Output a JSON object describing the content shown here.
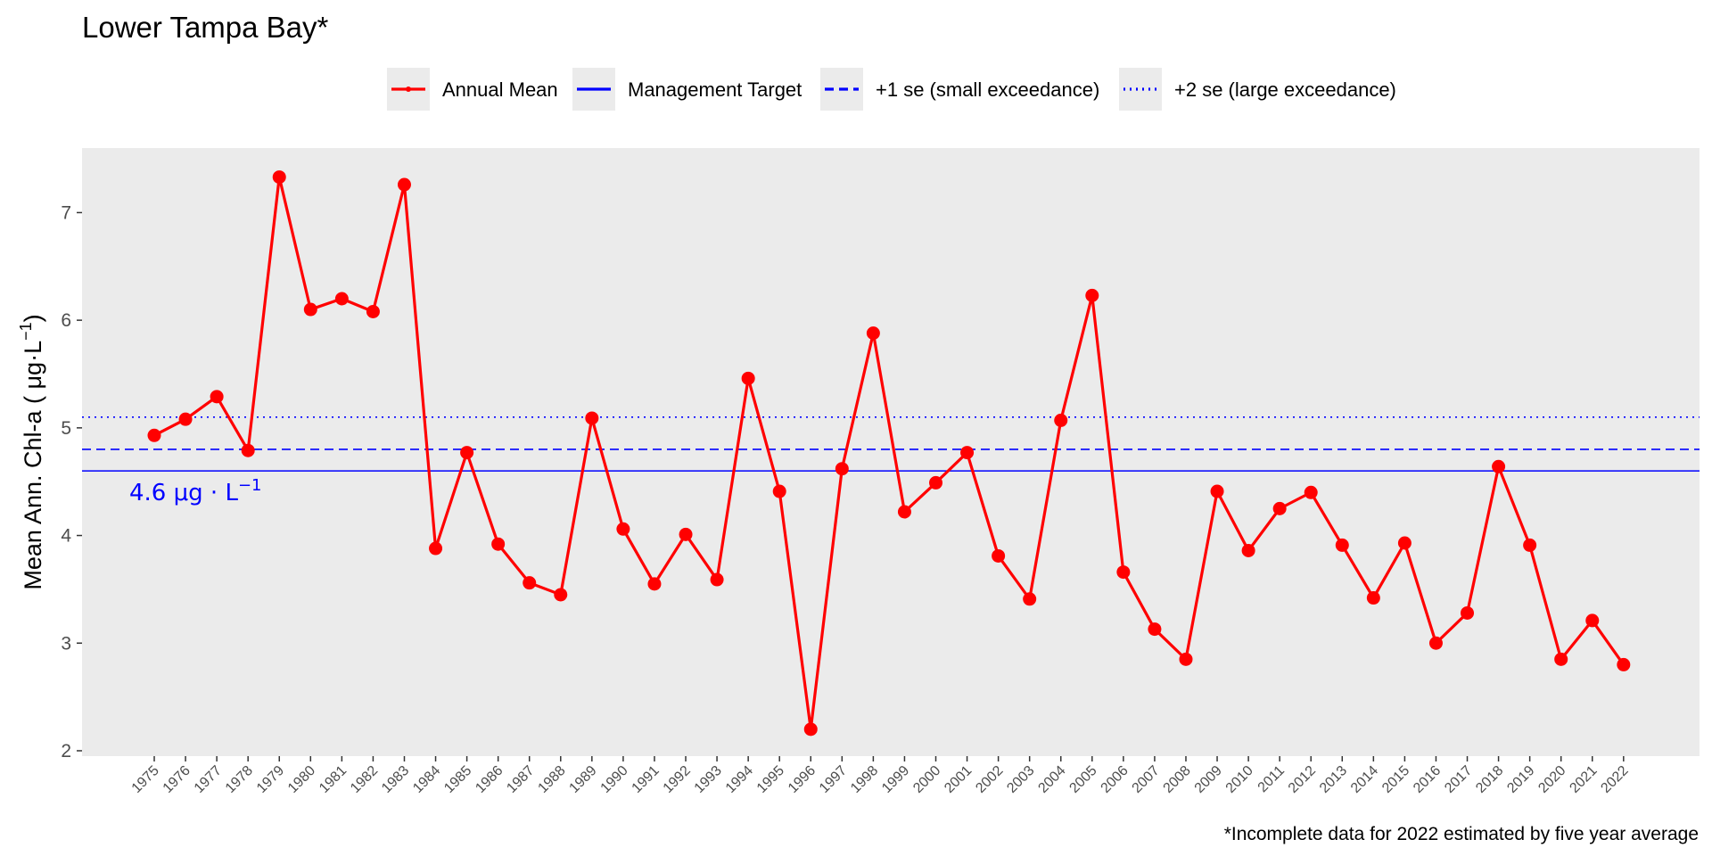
{
  "chart_data": {
    "type": "line",
    "title": "Lower Tampa Bay*",
    "ylabel": "Mean Ann. Chl-a ( μg·L",
    "ylabel_sup": "−1",
    "ylabel_close": ")",
    "caption": "*Incomplete data for 2022 estimated by five year average",
    "ylim": [
      1.95,
      7.6
    ],
    "yticks": [
      2,
      3,
      4,
      5,
      6,
      7
    ],
    "legend_position": "top",
    "grid": false,
    "x": [
      1975,
      1976,
      1977,
      1978,
      1979,
      1980,
      1981,
      1982,
      1983,
      1984,
      1985,
      1986,
      1987,
      1988,
      1989,
      1990,
      1991,
      1992,
      1993,
      1994,
      1995,
      1996,
      1997,
      1998,
      1999,
      2000,
      2001,
      2002,
      2003,
      2004,
      2005,
      2006,
      2007,
      2008,
      2009,
      2010,
      2011,
      2012,
      2013,
      2014,
      2015,
      2016,
      2017,
      2018,
      2019,
      2020,
      2021,
      2022
    ],
    "series": [
      {
        "name": "Annual Mean",
        "color": "#ff0000",
        "values": [
          4.93,
          5.08,
          5.29,
          4.79,
          7.33,
          6.1,
          6.2,
          6.08,
          7.26,
          3.88,
          4.77,
          3.92,
          3.56,
          3.45,
          5.09,
          4.06,
          3.55,
          4.01,
          3.59,
          5.46,
          4.41,
          2.2,
          4.62,
          5.88,
          4.22,
          4.49,
          4.77,
          3.81,
          3.41,
          5.07,
          6.23,
          3.66,
          3.13,
          2.85,
          4.41,
          3.86,
          4.25,
          4.4,
          3.91,
          3.42,
          3.93,
          3.0,
          3.28,
          4.64,
          3.91,
          2.85,
          3.21,
          2.8
        ]
      }
    ],
    "reference_lines": [
      {
        "name": "Management Target",
        "value": 4.6,
        "color": "#0000ff",
        "style": "solid"
      },
      {
        "name": "+1 se (small exceedance)",
        "value": 4.8,
        "color": "#0000ff",
        "style": "dashed"
      },
      {
        "name": "+2 se (large exceedance)",
        "value": 5.1,
        "color": "#0000ff",
        "style": "dotted"
      }
    ],
    "target_label": "4.6 μg · L",
    "target_label_sup": "−1"
  }
}
